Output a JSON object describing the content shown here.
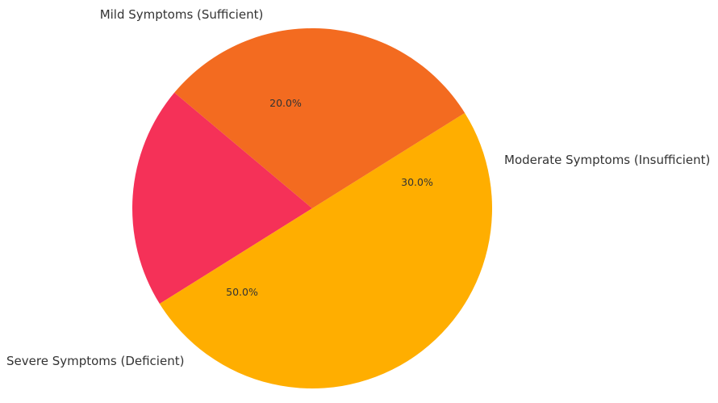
{
  "chart_data": {
    "type": "pie",
    "title": "",
    "start_angle_deg": 140,
    "direction": "counterclockwise",
    "legend": "none",
    "slices": [
      {
        "label": "Mild Symptoms (Sufficient)",
        "value": 20,
        "pct_label": "20.0%",
        "color": "#F53158"
      },
      {
        "label": "Severe Symptoms (Deficient)",
        "value": 50,
        "pct_label": "50.0%",
        "color": "#FFAE00"
      },
      {
        "label": "Moderate Symptoms (Insufficient)",
        "value": 30,
        "pct_label": "30.0%",
        "color": "#F36B20"
      }
    ]
  }
}
